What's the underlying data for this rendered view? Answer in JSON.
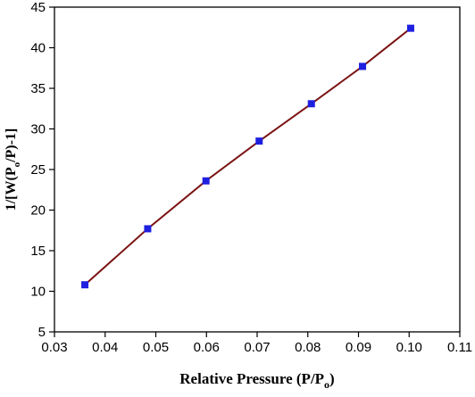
{
  "chart_data": {
    "type": "line",
    "xlabel": "Relative Pressure (P/P",
    "xlabel_sub": "o",
    "xlabel_end": ")",
    "ylabel_start": "1/[W(P",
    "ylabel_sub": "o",
    "ylabel_end": "/P)-1]",
    "xlim": [
      0.03,
      0.11
    ],
    "ylim": [
      5,
      45
    ],
    "x_ticks": [
      "0.03",
      "0.04",
      "0.05",
      "0.06",
      "0.07",
      "0.08",
      "0.09",
      "0.10",
      "0.11"
    ],
    "y_ticks": [
      "5",
      "10",
      "15",
      "20",
      "25",
      "30",
      "35",
      "40",
      "45"
    ],
    "line_color": "#7b1414",
    "marker_color": "#1f1fe0",
    "marker": "square",
    "grid": false,
    "series": [
      {
        "x": [
          0.036,
          0.0484,
          0.0599,
          0.0704,
          0.0807,
          0.0908,
          0.1003
        ],
        "y": [
          10.8,
          17.7,
          23.6,
          28.5,
          33.1,
          37.7,
          42.4
        ]
      }
    ]
  }
}
